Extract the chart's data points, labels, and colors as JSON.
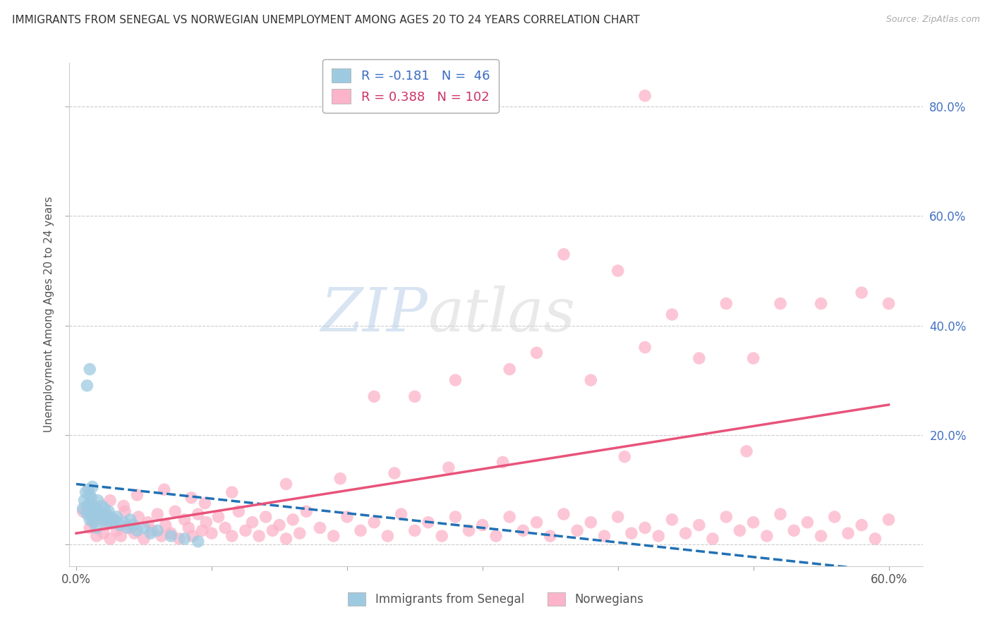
{
  "title": "IMMIGRANTS FROM SENEGAL VS NORWEGIAN UNEMPLOYMENT AMONG AGES 20 TO 24 YEARS CORRELATION CHART",
  "source": "Source: ZipAtlas.com",
  "ylabel": "Unemployment Among Ages 20 to 24 years",
  "xlim": [
    -0.005,
    0.625
  ],
  "ylim": [
    -0.04,
    0.88
  ],
  "xtick_vals": [
    0.0,
    0.1,
    0.2,
    0.3,
    0.4,
    0.5,
    0.6
  ],
  "xticklabels": [
    "0.0%",
    "",
    "",
    "",
    "",
    "",
    "60.0%"
  ],
  "ytick_vals": [
    0.0,
    0.2,
    0.4,
    0.6,
    0.8
  ],
  "yticklabels_right": [
    "",
    "20.0%",
    "40.0%",
    "60.0%",
    "80.0%"
  ],
  "legend_r1": "-0.181",
  "legend_n1": "46",
  "legend_r2": "0.388",
  "legend_n2": "102",
  "blue_color": "#9ecae1",
  "pink_color": "#fbb4c9",
  "trend_blue_color": "#2171b5",
  "trend_pink_color": "#e8537a",
  "watermark_zip": "ZIP",
  "watermark_atlas": "atlas",
  "blue_x": [
    0.005,
    0.006,
    0.007,
    0.008,
    0.008,
    0.009,
    0.009,
    0.01,
    0.01,
    0.01,
    0.011,
    0.011,
    0.012,
    0.012,
    0.013,
    0.013,
    0.014,
    0.015,
    0.015,
    0.016,
    0.017,
    0.018,
    0.019,
    0.02,
    0.021,
    0.022,
    0.023,
    0.024,
    0.025,
    0.026,
    0.028,
    0.03,
    0.032,
    0.035,
    0.038,
    0.04,
    0.042,
    0.045,
    0.05,
    0.055,
    0.06,
    0.07,
    0.08,
    0.09,
    0.008,
    0.01
  ],
  "blue_y": [
    0.065,
    0.08,
    0.095,
    0.07,
    0.055,
    0.06,
    0.1,
    0.045,
    0.075,
    0.09,
    0.05,
    0.085,
    0.06,
    0.105,
    0.07,
    0.04,
    0.055,
    0.065,
    0.03,
    0.08,
    0.06,
    0.05,
    0.07,
    0.045,
    0.065,
    0.055,
    0.04,
    0.06,
    0.05,
    0.04,
    0.045,
    0.05,
    0.035,
    0.04,
    0.03,
    0.045,
    0.035,
    0.025,
    0.03,
    0.02,
    0.025,
    0.015,
    0.01,
    0.005,
    0.29,
    0.32
  ],
  "pink_x": [
    0.005,
    0.01,
    0.012,
    0.015,
    0.018,
    0.02,
    0.022,
    0.025,
    0.028,
    0.03,
    0.033,
    0.036,
    0.04,
    0.043,
    0.046,
    0.05,
    0.053,
    0.056,
    0.06,
    0.063,
    0.066,
    0.07,
    0.073,
    0.076,
    0.08,
    0.083,
    0.086,
    0.09,
    0.093,
    0.096,
    0.1,
    0.105,
    0.11,
    0.115,
    0.12,
    0.125,
    0.13,
    0.135,
    0.14,
    0.145,
    0.15,
    0.155,
    0.16,
    0.165,
    0.17,
    0.18,
    0.19,
    0.2,
    0.21,
    0.22,
    0.23,
    0.24,
    0.25,
    0.26,
    0.27,
    0.28,
    0.29,
    0.3,
    0.31,
    0.32,
    0.33,
    0.34,
    0.35,
    0.36,
    0.37,
    0.38,
    0.39,
    0.4,
    0.41,
    0.42,
    0.43,
    0.44,
    0.45,
    0.46,
    0.47,
    0.48,
    0.49,
    0.5,
    0.51,
    0.52,
    0.53,
    0.54,
    0.55,
    0.56,
    0.57,
    0.58,
    0.59,
    0.6,
    0.025,
    0.035,
    0.045,
    0.065,
    0.085,
    0.095,
    0.115,
    0.155,
    0.195,
    0.235,
    0.275,
    0.315,
    0.405,
    0.495
  ],
  "pink_y": [
    0.06,
    0.03,
    0.04,
    0.015,
    0.05,
    0.02,
    0.035,
    0.01,
    0.045,
    0.025,
    0.015,
    0.06,
    0.03,
    0.02,
    0.05,
    0.01,
    0.04,
    0.025,
    0.055,
    0.015,
    0.035,
    0.02,
    0.06,
    0.01,
    0.045,
    0.03,
    0.015,
    0.055,
    0.025,
    0.04,
    0.02,
    0.05,
    0.03,
    0.015,
    0.06,
    0.025,
    0.04,
    0.015,
    0.05,
    0.025,
    0.035,
    0.01,
    0.045,
    0.02,
    0.06,
    0.03,
    0.015,
    0.05,
    0.025,
    0.04,
    0.015,
    0.055,
    0.025,
    0.04,
    0.015,
    0.05,
    0.025,
    0.035,
    0.015,
    0.05,
    0.025,
    0.04,
    0.015,
    0.055,
    0.025,
    0.04,
    0.015,
    0.05,
    0.02,
    0.03,
    0.015,
    0.045,
    0.02,
    0.035,
    0.01,
    0.05,
    0.025,
    0.04,
    0.015,
    0.055,
    0.025,
    0.04,
    0.015,
    0.05,
    0.02,
    0.035,
    0.01,
    0.045,
    0.08,
    0.07,
    0.09,
    0.1,
    0.085,
    0.075,
    0.095,
    0.11,
    0.12,
    0.13,
    0.14,
    0.15,
    0.16,
    0.17
  ],
  "pink_outliers_x": [
    0.42,
    0.55,
    0.58,
    0.4,
    0.48,
    0.52,
    0.44,
    0.38,
    0.6,
    0.36,
    0.46,
    0.42,
    0.5,
    0.34,
    0.32,
    0.28,
    0.25,
    0.22
  ],
  "pink_outliers_y": [
    0.82,
    0.44,
    0.46,
    0.5,
    0.44,
    0.44,
    0.42,
    0.3,
    0.44,
    0.53,
    0.34,
    0.36,
    0.34,
    0.35,
    0.32,
    0.3,
    0.27,
    0.27
  ],
  "pink_trend_x0": 0.0,
  "pink_trend_y0": 0.02,
  "pink_trend_x1": 0.6,
  "pink_trend_y1": 0.255,
  "blue_trend_x0": 0.0,
  "blue_trend_y0": 0.11,
  "blue_trend_x1": 0.6,
  "blue_trend_y1": -0.05
}
